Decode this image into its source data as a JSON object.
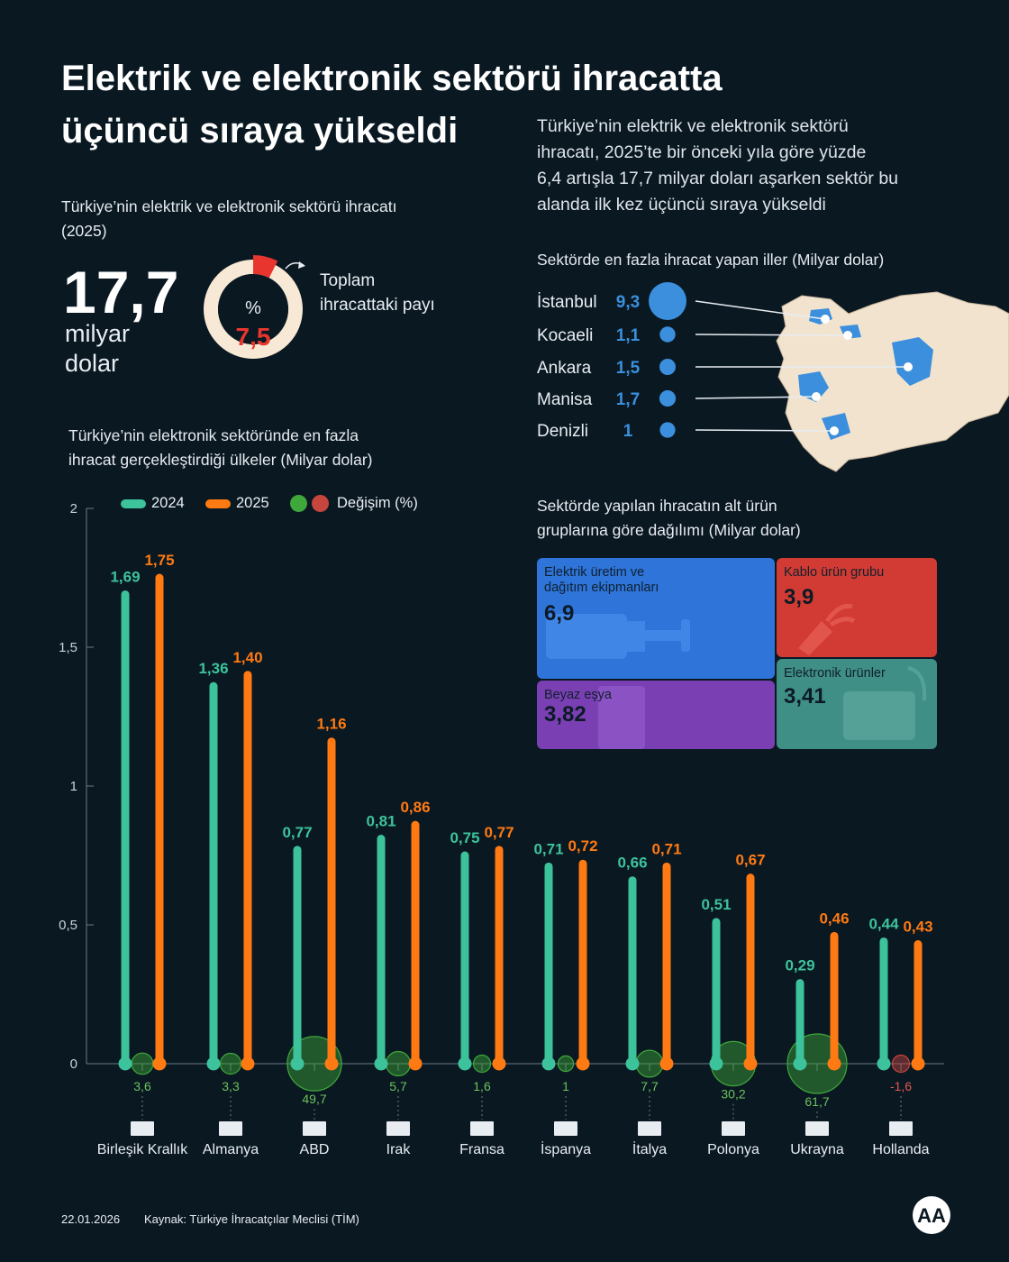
{
  "header": {
    "title_line1": "Elektrik ve elektronik sektörü ihracatta",
    "title_line2": "üçüncü sıraya yükseldi",
    "intro_lines": [
      "Türkiye’nin elektrik ve elektronik sektörü",
      "ihracatı, 2025’te bir önceki yıla göre yüzde",
      "6,4 artışla 17,7 milyar doları aşarken sektör bu",
      "alanda ilk kez üçüncü sıraya yükseldi"
    ]
  },
  "export_total": {
    "label_line1": "Türkiye’nin elektrik ve elektronik sektörü ihracatı",
    "label_line2": "(2025)",
    "value": "17,7",
    "unit_line1": "milyar",
    "unit_line2": "dolar",
    "share_symbol": "%",
    "share_value": "7,5",
    "share_fraction": 0.075,
    "share_label_line1": "Toplam",
    "share_label_line2": "ihracattaki payı"
  },
  "provinces": {
    "title": "Sektörde en fazla ihracat yapan iller (Milyar dolar)",
    "items": [
      {
        "name": "İstanbul",
        "value": "9,3",
        "num": 9.3
      },
      {
        "name": "Kocaeli",
        "value": "1,1",
        "num": 1.1
      },
      {
        "name": "Ankara",
        "value": "1,5",
        "num": 1.5
      },
      {
        "name": "Manisa",
        "value": "1,7",
        "num": 1.7
      },
      {
        "name": "Denizli",
        "value": "1",
        "num": 1
      }
    ]
  },
  "subgroups": {
    "title_line1": "Sektörde yapılan ihracatın alt ürün",
    "title_line2": "gruplarına göre dağılımı (Milyar dolar)",
    "items": [
      {
        "label_line1": "Elektrik üretim ve",
        "label_line2": "dağıtım ekipmanları",
        "value": "6,9",
        "color": "#2e74d9"
      },
      {
        "label_line1": "Kablo ürün grubu",
        "label_line2": "",
        "value": "3,9",
        "color": "#d23b34"
      },
      {
        "label_line1": "Beyaz eşya",
        "label_line2": "",
        "value": "3,82",
        "color": "#7a3fb2"
      },
      {
        "label_line1": "Elektronik ürünler",
        "label_line2": "",
        "value": "3,41",
        "color": "#3f8f86"
      }
    ]
  },
  "chart_title_line1": "Türkiye’nin elektronik sektöründe en fazla",
  "chart_title_line2": "ihracat gerçekleştirdiği ülkeler (Milyar dolar)",
  "chart_data": {
    "type": "bar",
    "title": "Türkiye’nin elektronik sektöründe en fazla ihracat gerçekleştirdiği ülkeler (Milyar dolar)",
    "categories": [
      "Birleşik Krallık",
      "Almanya",
      "ABD",
      "Irak",
      "Fransa",
      "İspanya",
      "İtalya",
      "Polonya",
      "Ukrayna",
      "Hollanda"
    ],
    "series": [
      {
        "name": "2024",
        "color": "#3dc39b",
        "values": [
          1.69,
          1.36,
          0.77,
          0.81,
          0.75,
          0.71,
          0.66,
          0.51,
          0.29,
          0.44
        ],
        "labels": [
          "1,69",
          "1,36",
          "0,77",
          "0,81",
          "0,75",
          "0,71",
          "0,66",
          "0,51",
          "0,29",
          "0,44"
        ]
      },
      {
        "name": "2025",
        "color": "#ff7a12",
        "values": [
          1.75,
          1.4,
          1.16,
          0.86,
          0.77,
          0.72,
          0.71,
          0.67,
          0.46,
          0.43
        ],
        "labels": [
          "1,75",
          "1,40",
          "1,16",
          "0,86",
          "0,77",
          "0,72",
          "0,71",
          "0,67",
          "0,46",
          "0,43"
        ]
      }
    ],
    "change": {
      "name": "Değişim (%)",
      "values": [
        3.6,
        3.3,
        49.7,
        5.7,
        1.6,
        1,
        7.7,
        30.2,
        61.7,
        -1.6
      ],
      "labels": [
        "3,6",
        "3,3",
        "49,7",
        "5,7",
        "1,6",
        "1",
        "7,7",
        "30,2",
        "61,7",
        "-1,6"
      ],
      "positive_color": "#3fa83a",
      "negative_color": "#c6453d"
    },
    "ylim": [
      0,
      2
    ],
    "yticks": [
      0,
      0.5,
      1,
      1.5,
      2
    ],
    "ytick_labels": [
      "0",
      "0,5",
      "1",
      "1,5",
      "2"
    ],
    "legend": [
      "2024",
      "2025",
      "Değişim (%)"
    ]
  },
  "footer": {
    "date": "22.01.2026",
    "source": "Kaynak: Türkiye İhracatçılar Meclisi (TİM)",
    "logo_text": "AA"
  }
}
